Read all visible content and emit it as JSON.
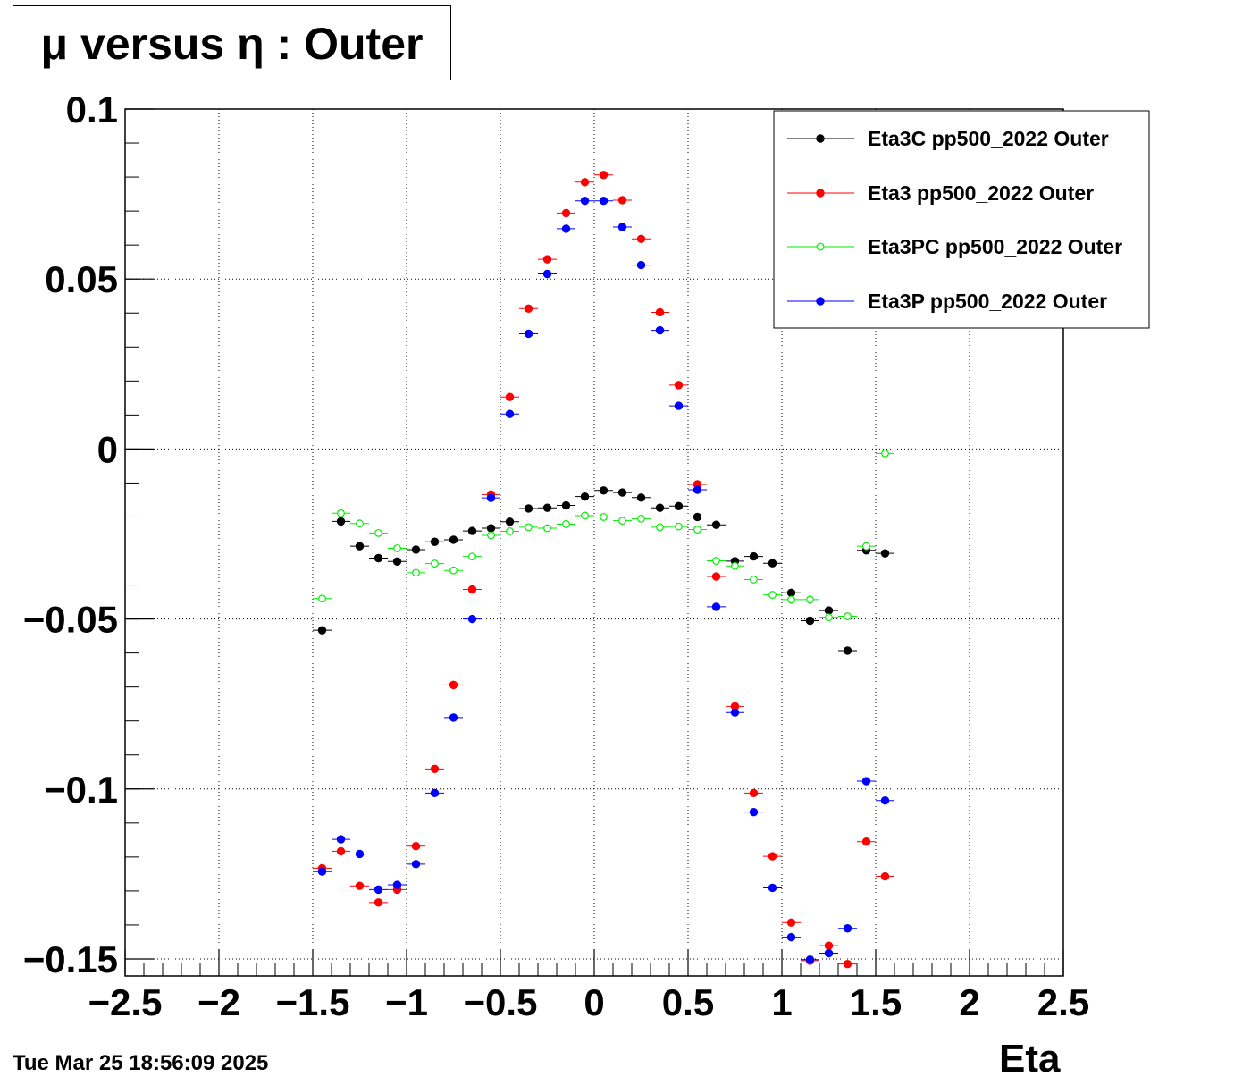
{
  "title": "μ versus η : Outer",
  "timestamp": "Tue Mar 25 18:56:09 2025",
  "chart_data": {
    "type": "scatter",
    "title": "μ versus η : Outer",
    "xlabel": "Eta",
    "ylabel": "",
    "xlim": [
      -2.5,
      2.5
    ],
    "ylim": [
      -0.155,
      0.1
    ],
    "grid": true,
    "legend_position": "top-right",
    "xticks": [
      -2.5,
      -2,
      -1.5,
      -1,
      -0.5,
      0,
      0.5,
      1,
      1.5,
      2,
      2.5
    ],
    "xtick_labels": [
      "−2.5",
      "−2",
      "−1.5",
      "−1",
      "−0.5",
      "0",
      "0.5",
      "1",
      "1.5",
      "2",
      "2.5"
    ],
    "yticks": [
      0.1,
      0.05,
      0,
      -0.05,
      -0.1,
      -0.15
    ],
    "ytick_labels": [
      "0.1",
      "0.05",
      "0",
      "−0.05",
      "−0.1",
      "−0.15"
    ],
    "x": [
      -1.45,
      -1.35,
      -1.25,
      -1.15,
      -1.05,
      -0.95,
      -0.85,
      -0.75,
      -0.65,
      -0.55,
      -0.45,
      -0.35,
      -0.25,
      -0.15,
      -0.05,
      0.05,
      0.15,
      0.25,
      0.35,
      0.45,
      0.55,
      0.65,
      0.75,
      0.85,
      0.95,
      1.05,
      1.15,
      1.25,
      1.35,
      1.45,
      1.55
    ],
    "series": [
      {
        "name": "Eta3C pp500_2022 Outer",
        "color": "#000000",
        "marker": "filled-circle",
        "values": [
          -0.0533,
          -0.0213,
          -0.0286,
          -0.0321,
          -0.0331,
          -0.0296,
          -0.0273,
          -0.0267,
          -0.0241,
          -0.0233,
          -0.0214,
          -0.0175,
          -0.0173,
          -0.0166,
          -0.014,
          -0.0122,
          -0.0128,
          -0.0143,
          -0.0173,
          -0.0168,
          -0.02,
          -0.0223,
          -0.033,
          -0.0316,
          -0.0336,
          -0.0423,
          -0.0505,
          -0.0475,
          -0.0593,
          -0.0298,
          -0.0307
        ]
      },
      {
        "name": "Eta3 pp500_2022 Outer",
        "color": "#ff0000",
        "marker": "filled-circle",
        "values": [
          -0.1233,
          -0.1183,
          -0.1285,
          -0.1334,
          -0.1296,
          -0.1168,
          -0.0941,
          -0.0694,
          -0.0413,
          -0.0134,
          0.0153,
          0.0413,
          0.0558,
          0.0694,
          0.0785,
          0.0806,
          0.0732,
          0.0618,
          0.0402,
          0.0188,
          -0.0104,
          -0.0375,
          -0.0757,
          -0.1012,
          -0.1198,
          -0.1393,
          -0.1505,
          -0.1461,
          -0.1515,
          -0.1155,
          -0.1257
        ]
      },
      {
        "name": "Eta3PC pp500_2022 Outer",
        "color": "#00ee00",
        "marker": "open-circle",
        "values": [
          -0.044,
          -0.0189,
          -0.0219,
          -0.0247,
          -0.0292,
          -0.0364,
          -0.0337,
          -0.0357,
          -0.0316,
          -0.0254,
          -0.0242,
          -0.023,
          -0.0233,
          -0.0221,
          -0.0196,
          -0.02,
          -0.0211,
          -0.0205,
          -0.023,
          -0.0228,
          -0.0237,
          -0.0329,
          -0.0344,
          -0.0384,
          -0.0429,
          -0.0443,
          -0.0443,
          -0.0495,
          -0.0492,
          -0.0286,
          -0.0013
        ]
      },
      {
        "name": "Eta3P pp500_2022 Outer",
        "color": "#0000ff",
        "marker": "filled-circle",
        "values": [
          -0.1243,
          -0.1148,
          -0.1191,
          -0.1296,
          -0.1282,
          -0.1221,
          -0.1012,
          -0.079,
          -0.05,
          -0.0144,
          0.0103,
          0.0339,
          0.0515,
          0.0648,
          0.073,
          0.073,
          0.0653,
          0.0541,
          0.0349,
          0.0127,
          -0.012,
          -0.0464,
          -0.0775,
          -0.1068,
          -0.1291,
          -0.1436,
          -0.1502,
          -0.1483,
          -0.141,
          -0.0977,
          -0.1034
        ]
      }
    ]
  }
}
